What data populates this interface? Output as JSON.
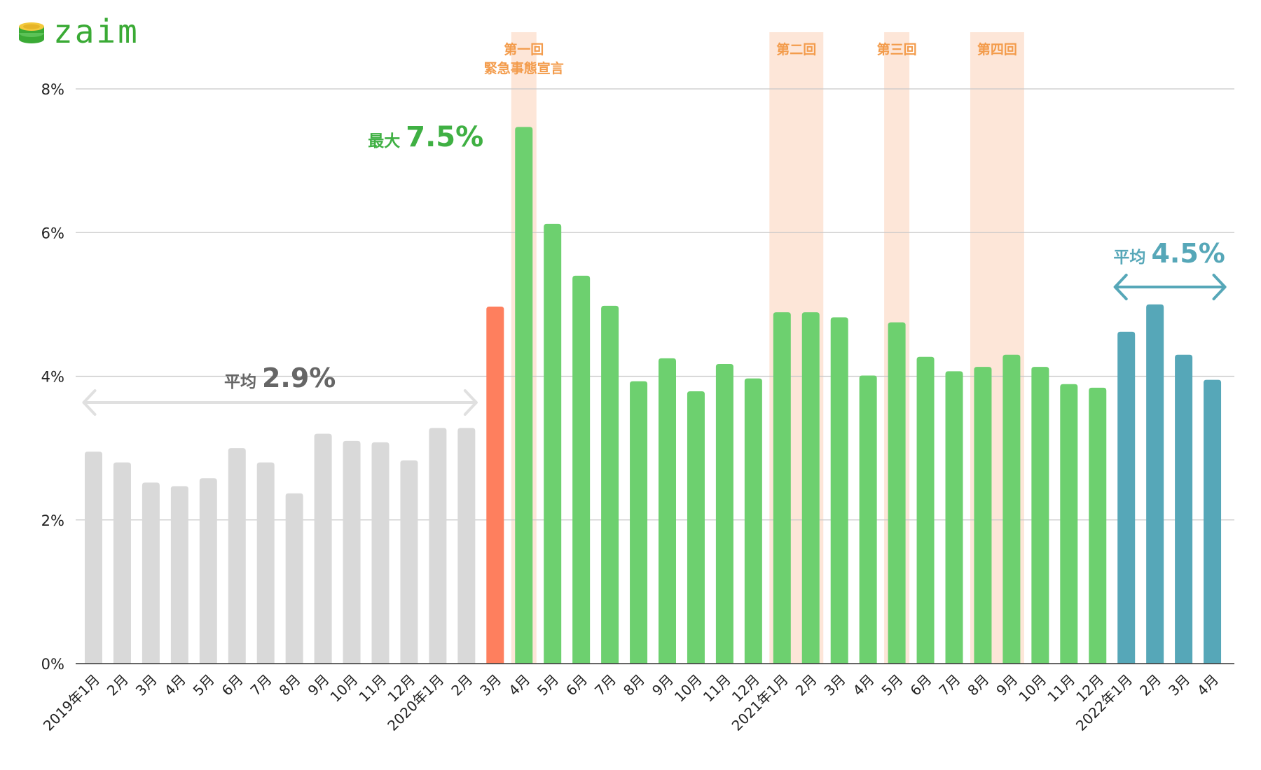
{
  "brand": {
    "name": "zaim",
    "color": "#3aaa35"
  },
  "colors": {
    "pre": "#d9d9d9",
    "march2020": "#fe7f5e",
    "covid": "#6dd06f",
    "recent": "#56a7b8",
    "band": "#fde6d8",
    "band_label": "#f39c4c",
    "grid": "#c8c8c8",
    "axis": "#333333",
    "avg_left": "#666666",
    "avg_right": "#56a7b8",
    "max": "#3fb043",
    "arrow_left": "#e0e0e0",
    "arrow_right": "#56a7b8"
  },
  "chart_data": {
    "type": "bar",
    "categories": [
      "2019年1月",
      "2月",
      "3月",
      "4月",
      "5月",
      "6月",
      "7月",
      "8月",
      "9月",
      "10月",
      "11月",
      "12月",
      "2020年1月",
      "2月",
      "3月",
      "4月",
      "5月",
      "6月",
      "7月",
      "8月",
      "9月",
      "10月",
      "11月",
      "12月",
      "2021年1月",
      "2月",
      "3月",
      "4月",
      "5月",
      "6月",
      "7月",
      "8月",
      "9月",
      "10月",
      "11月",
      "12月",
      "2022年1月",
      "2月",
      "3月",
      "4月"
    ],
    "values": [
      2.95,
      2.8,
      2.52,
      2.47,
      2.58,
      3.0,
      2.8,
      2.37,
      3.2,
      3.1,
      3.08,
      2.83,
      3.28,
      3.28,
      4.97,
      7.47,
      6.12,
      5.4,
      4.98,
      3.93,
      4.25,
      3.79,
      4.17,
      3.97,
      4.89,
      4.89,
      4.82,
      4.01,
      4.75,
      4.27,
      4.07,
      4.13,
      4.3,
      4.13,
      3.89,
      3.84,
      4.62,
      5.0,
      4.3,
      3.95
    ],
    "groups": [
      "pre",
      "pre",
      "pre",
      "pre",
      "pre",
      "pre",
      "pre",
      "pre",
      "pre",
      "pre",
      "pre",
      "pre",
      "pre",
      "pre",
      "march2020",
      "covid",
      "covid",
      "covid",
      "covid",
      "covid",
      "covid",
      "covid",
      "covid",
      "covid",
      "covid",
      "covid",
      "covid",
      "covid",
      "covid",
      "covid",
      "covid",
      "covid",
      "covid",
      "covid",
      "covid",
      "covid",
      "recent",
      "recent",
      "recent",
      "recent"
    ],
    "ylim": [
      0,
      8
    ],
    "yticks": [
      0,
      2,
      4,
      6,
      8
    ],
    "ytick_labels": [
      "0%",
      "2%",
      "4%",
      "6%",
      "8%"
    ],
    "grid": true,
    "emergency_periods": [
      {
        "label": [
          "第一回",
          "緊急事態宣言"
        ],
        "start": 15,
        "end": 15
      },
      {
        "label": [
          "第二回"
        ],
        "start": 24,
        "end": 25
      },
      {
        "label": [
          "第三回"
        ],
        "start": 28,
        "end": 28
      },
      {
        "label": [
          "第四回"
        ],
        "start": 31,
        "end": 32
      }
    ],
    "annotations": {
      "avg_before": {
        "prefix": "平均",
        "value": "2.9%",
        "from": 0,
        "to": 13
      },
      "max": {
        "prefix": "最大",
        "value": "7.5%",
        "index": 15
      },
      "avg_recent": {
        "prefix": "平均",
        "value": "4.5%",
        "from": 36,
        "to": 39
      }
    }
  }
}
